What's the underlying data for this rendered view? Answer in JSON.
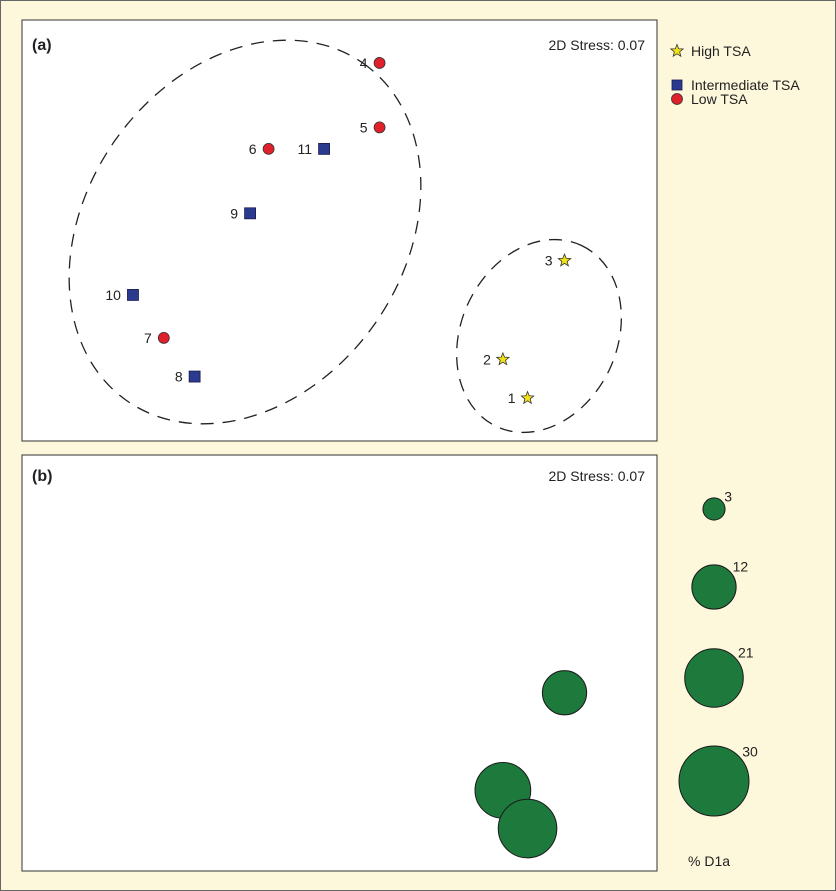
{
  "chart_data": [
    {
      "type": "scatter",
      "panel_label": "(a)",
      "stress_text": "2D Stress: 0.07",
      "grid": false,
      "legend_placement": "right",
      "legend": [
        {
          "key": "high",
          "label": "High TSA",
          "marker": "star",
          "color": "#f2e21a"
        },
        {
          "key": "intermediate",
          "label": "Intermediate TSA",
          "marker": "square",
          "color": "#2a3a8f"
        },
        {
          "key": "low",
          "label": "Low TSA",
          "marker": "circle",
          "color": "#e0202a"
        }
      ],
      "points": [
        {
          "label": "1",
          "group": "high",
          "x": 8.2,
          "y": 1.0
        },
        {
          "label": "2",
          "group": "high",
          "x": 7.8,
          "y": 1.9
        },
        {
          "label": "3",
          "group": "high",
          "x": 8.8,
          "y": 4.2
        },
        {
          "label": "4",
          "group": "low",
          "x": 5.8,
          "y": 8.8
        },
        {
          "label": "5",
          "group": "low",
          "x": 5.8,
          "y": 7.3
        },
        {
          "label": "6",
          "group": "low",
          "x": 4.0,
          "y": 6.8
        },
        {
          "label": "7",
          "group": "low",
          "x": 2.3,
          "y": 2.4
        },
        {
          "label": "8",
          "group": "intermediate",
          "x": 2.8,
          "y": 1.5
        },
        {
          "label": "9",
          "group": "intermediate",
          "x": 3.7,
          "y": 5.3
        },
        {
          "label": "10",
          "group": "intermediate",
          "x": 1.8,
          "y": 3.4
        },
        {
          "label": "11",
          "group": "intermediate",
          "x": 4.9,
          "y": 6.8
        }
      ],
      "xlim": [
        0,
        10.3
      ],
      "ylim": [
        0,
        9.8
      ]
    },
    {
      "type": "bubble",
      "panel_label": "(b)",
      "stress_text": "2D Stress: 0.07",
      "grid": false,
      "bubble_color": "#1e7a3c",
      "points": [
        {
          "x": 8.8,
          "y": 4.2,
          "value": 12
        },
        {
          "x": 7.8,
          "y": 1.9,
          "value": 19
        },
        {
          "x": 8.2,
          "y": 1.0,
          "value": 21
        }
      ],
      "size_legend": {
        "title": "% D1a",
        "values": [
          3,
          12,
          21,
          30
        ]
      },
      "xlim": [
        0,
        10.3
      ],
      "ylim": [
        0,
        9.8
      ]
    }
  ]
}
